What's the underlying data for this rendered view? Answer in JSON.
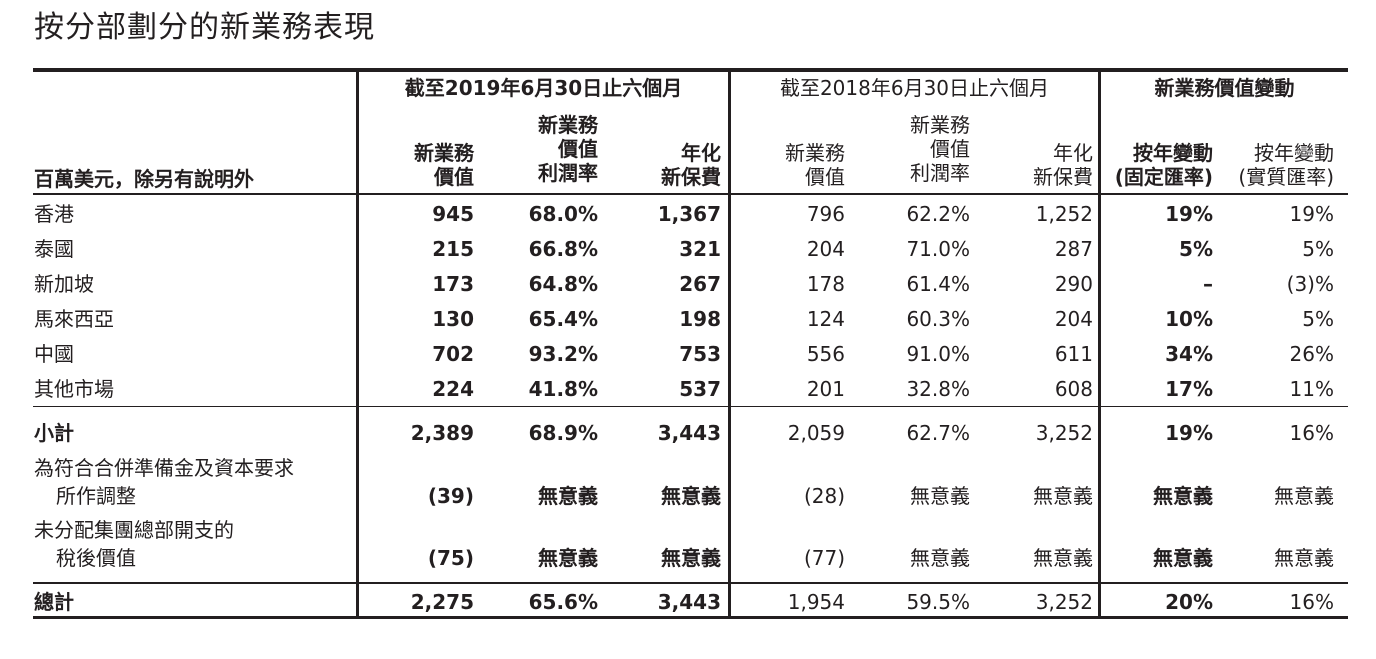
{
  "title": "按分部劃分的新業務表現",
  "header": {
    "unit_label": "百萬美元，除另有說明外",
    "group_2019": "截至2019年6月30日止六個月",
    "group_2018": "截至2018年6月30日止六個月",
    "group_change": "新業務價值變動",
    "col_nbv": [
      "新業務",
      "價值"
    ],
    "col_margin": [
      "新業務",
      "價值",
      "利潤率"
    ],
    "col_ape": [
      "年化",
      "新保費"
    ],
    "col_ccy_fixed": [
      "按年變動",
      "(固定匯率)"
    ],
    "col_ccy_actual": [
      "按年變動",
      "(實質匯率)"
    ]
  },
  "rows": [
    {
      "label": "香港",
      "nbv19": "945",
      "m19": "68.0%",
      "ape19": "1,367",
      "nbv18": "796",
      "m18": "62.2%",
      "ape18": "1,252",
      "chg_c": "19%",
      "chg_a": "19%"
    },
    {
      "label": "泰國",
      "nbv19": "215",
      "m19": "66.8%",
      "ape19": "321",
      "nbv18": "204",
      "m18": "71.0%",
      "ape18": "287",
      "chg_c": "5%",
      "chg_a": "5%"
    },
    {
      "label": "新加坡",
      "nbv19": "173",
      "m19": "64.8%",
      "ape19": "267",
      "nbv18": "178",
      "m18": "61.4%",
      "ape18": "290",
      "chg_c": "–",
      "chg_a": "(3)%"
    },
    {
      "label": "馬來西亞",
      "nbv19": "130",
      "m19": "65.4%",
      "ape19": "198",
      "nbv18": "124",
      "m18": "60.3%",
      "ape18": "204",
      "chg_c": "10%",
      "chg_a": "5%"
    },
    {
      "label": "中國",
      "nbv19": "702",
      "m19": "93.2%",
      "ape19": "753",
      "nbv18": "556",
      "m18": "91.0%",
      "ape18": "611",
      "chg_c": "34%",
      "chg_a": "26%"
    },
    {
      "label": "其他市場",
      "nbv19": "224",
      "m19": "41.8%",
      "ape19": "537",
      "nbv18": "201",
      "m18": "32.8%",
      "ape18": "608",
      "chg_c": "17%",
      "chg_a": "11%"
    }
  ],
  "subtotal": {
    "label": "小計",
    "nbv19": "2,389",
    "m19": "68.9%",
    "ape19": "3,443",
    "nbv18": "2,059",
    "m18": "62.7%",
    "ape18": "3,252",
    "chg_c": "19%",
    "chg_a": "16%"
  },
  "adjust1": {
    "label": [
      "為符合合併準備金及資本要求",
      "所作調整"
    ],
    "nbv19": "(39)",
    "m19": "無意義",
    "ape19": "無意義",
    "nbv18": "(28)",
    "m18": "無意義",
    "ape18": "無意義",
    "chg_c": "無意義",
    "chg_a": "無意義"
  },
  "adjust2": {
    "label": [
      "未分配集團總部開支的",
      "稅後價值"
    ],
    "nbv19": "(75)",
    "m19": "無意義",
    "ape19": "無意義",
    "nbv18": "(77)",
    "m18": "無意義",
    "ape18": "無意義",
    "chg_c": "無意義",
    "chg_a": "無意義"
  },
  "total": {
    "label": "總計",
    "nbv19": "2,275",
    "m19": "65.6%",
    "ape19": "3,443",
    "nbv18": "1,954",
    "m18": "59.5%",
    "ape18": "3,252",
    "chg_c": "20%",
    "chg_a": "16%"
  }
}
